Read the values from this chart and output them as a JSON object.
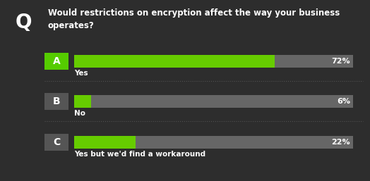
{
  "title_line1": "Would restrictions on encryption affect the way your business",
  "title_line2": "operates?",
  "question_letter": "Q",
  "background_color": "#2d2d2d",
  "options": [
    {
      "letter": "A",
      "label": "Yes",
      "value": 72,
      "letter_bg": "#55cc00"
    },
    {
      "letter": "B",
      "label": "No",
      "value": 6,
      "letter_bg": "#555555"
    },
    {
      "letter": "C",
      "label": "Yes but we'd find a workaround",
      "value": 22,
      "letter_bg": "#555555"
    }
  ],
  "bar_bg_color": "#666666",
  "bar_fg_color": "#66cc00",
  "bar_text_color": "#ffffff",
  "title_color": "#ffffff",
  "label_color": "#ffffff",
  "letter_text_color": "#ffffff",
  "divider_color": "#555555",
  "max_value": 100,
  "fig_width": 5.24,
  "fig_height": 2.57,
  "dpi": 100
}
